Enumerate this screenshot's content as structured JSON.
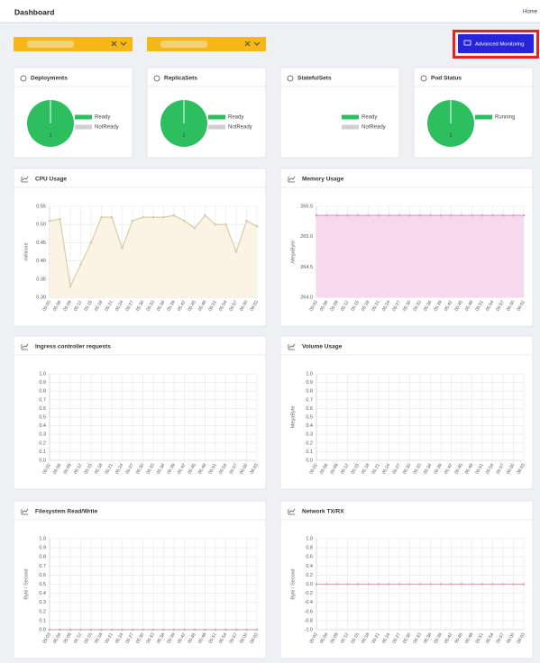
{
  "header": {
    "title": "Dashboard",
    "breadcrumb": "Home"
  },
  "button": "Advanced Monitoring",
  "status_cards": [
    {
      "title": "Deployments",
      "legend": [
        "Ready",
        "NotReady"
      ],
      "colors": [
        "#2dbe60",
        "#cfcfd4"
      ],
      "values": [
        1,
        0
      ]
    },
    {
      "title": "ReplicaSets",
      "legend": [
        "Ready",
        "NotReady"
      ],
      "colors": [
        "#2dbe60",
        "#cfcfd4"
      ],
      "values": [
        1,
        0
      ]
    },
    {
      "title": "StatefulSets",
      "legend": [
        "Ready",
        "NotReady"
      ],
      "colors": [
        "#2dbe60",
        "#cfcfd4"
      ],
      "values": [
        0,
        0
      ]
    },
    {
      "title": "Pod Status",
      "legend": [
        "Running"
      ],
      "colors": [
        "#2dbe60"
      ],
      "values": [
        1
      ]
    }
  ],
  "charts": [
    {
      "type": "area",
      "title": "CPU Usage",
      "ylabel": "millicore",
      "color": "#d9ccab",
      "fill": "#fbf4e4",
      "categories": [
        "05:03",
        "05:06",
        "05:09",
        "05:12",
        "05:15",
        "05:18",
        "05:21",
        "05:24",
        "05:27",
        "05:30",
        "05:33",
        "05:36",
        "05:39",
        "05:42",
        "05:45",
        "05:48",
        "05:51",
        "05:54",
        "05:57",
        "06:00",
        "06:03"
      ],
      "values": [
        0.51,
        0.515,
        0.33,
        0.39,
        0.45,
        0.52,
        0.52,
        0.435,
        0.51,
        0.52,
        0.52,
        0.52,
        0.525,
        0.51,
        0.49,
        0.525,
        0.5,
        0.5,
        0.425,
        0.51,
        0.495
      ],
      "ylim": [
        0.3,
        0.55
      ],
      "yticks": [
        {
          "value": 0.3,
          "label": "0.30"
        },
        0.35,
        {
          "value": 0.4,
          "label": "0.40"
        },
        0.45,
        {
          "value": 0.5,
          "label": "0.50"
        },
        0.55
      ]
    },
    {
      "type": "area",
      "title": "Memory Usage",
      "ylabel": "MegaByte",
      "color": "#dca0cc",
      "fill": "#f7d8ee",
      "categories": [
        "05:02",
        "05:06",
        "05:09",
        "05:12",
        "05:15",
        "05:18",
        "05:21",
        "05:24",
        "05:27",
        "05:30",
        "05:33",
        "05:36",
        "05:39",
        "05:42",
        "05:45",
        "05:48",
        "05:51",
        "05:54",
        "05:57",
        "06:00",
        "06:02"
      ],
      "values": [
        265.35,
        265.35,
        265.35,
        265.35,
        265.35,
        265.35,
        265.35,
        265.35,
        265.35,
        265.35,
        265.35,
        265.35,
        265.35,
        265.35,
        265.35,
        265.35,
        265.35,
        265.35,
        265.35,
        265.35,
        265.35
      ],
      "ylim": [
        264,
        265.5
      ],
      "yticks": [
        {
          "value": 264,
          "label": "264.0"
        },
        264.5,
        {
          "value": 265,
          "label": "265.0"
        },
        265.5
      ]
    },
    {
      "type": "line",
      "title": "Ingress controller requests",
      "categories": [
        "05:02",
        "05:06",
        "05:09",
        "05:12",
        "05:15",
        "05:18",
        "05:21",
        "05:24",
        "05:27",
        "05:30",
        "05:33",
        "05:36",
        "05:39",
        "05:42",
        "05:45",
        "05:48",
        "05:51",
        "05:54",
        "05:57",
        "06:00",
        "06:03"
      ],
      "ylim": [
        0,
        1
      ],
      "yticks": [
        {
          "value": 0,
          "label": "0.0"
        },
        0.1,
        0.2,
        0.3,
        0.4,
        0.5,
        0.6,
        0.7,
        0.8,
        0.9,
        {
          "value": 1,
          "label": "1.0"
        }
      ]
    },
    {
      "type": "line",
      "title": "Volume Usage",
      "ylabel": "MegaByte",
      "categories": [
        "05:02",
        "05:06",
        "05:09",
        "05:12",
        "05:15",
        "05:18",
        "05:21",
        "05:24",
        "05:27",
        "05:30",
        "05:33",
        "05:36",
        "05:39",
        "05:42",
        "05:45",
        "05:48",
        "05:51",
        "05:54",
        "05:57",
        "06:00",
        "06:03"
      ],
      "ylim": [
        0,
        1
      ],
      "yticks": [
        {
          "value": 0,
          "label": "0.0"
        },
        0.1,
        0.2,
        0.3,
        0.4,
        0.5,
        0.6,
        0.7,
        0.8,
        0.9,
        {
          "value": 1,
          "label": "1.0"
        }
      ]
    },
    {
      "type": "line",
      "title": "Filesystem Read/Write",
      "ylabel": "Byte / Second",
      "color": "#d4aab0",
      "categories": [
        "05:03",
        "05:06",
        "05:09",
        "05:12",
        "05:15",
        "05:18",
        "05:21",
        "05:24",
        "05:27",
        "05:30",
        "05:33",
        "05:36",
        "05:39",
        "05:42",
        "05:45",
        "05:48",
        "05:51",
        "05:54",
        "05:57",
        "06:00",
        "06:03"
      ],
      "values": [
        0,
        0,
        0,
        0,
        0,
        0,
        0,
        0,
        0,
        0,
        0,
        0,
        0,
        0,
        0,
        0,
        0,
        0,
        0,
        0,
        0
      ],
      "ylim": [
        0,
        1
      ],
      "yticks": [
        {
          "value": 0,
          "label": "0.0"
        },
        0.1,
        0.2,
        0.3,
        0.4,
        0.5,
        0.6,
        0.7,
        0.8,
        0.9,
        {
          "value": 1,
          "label": "1.0"
        }
      ]
    },
    {
      "type": "line",
      "title": "Network TX/RX",
      "ylabel": "Byte / Second",
      "color": "#d4aab0",
      "categories": [
        "05:02",
        "05:06",
        "05:09",
        "05:12",
        "05:15",
        "05:18",
        "05:21",
        "05:24",
        "05:27",
        "05:30",
        "05:33",
        "05:36",
        "05:39",
        "05:42",
        "05:45",
        "05:48",
        "05:51",
        "05:54",
        "05:57",
        "06:00",
        "06:03"
      ],
      "values": [
        0,
        0,
        0,
        0,
        0,
        0,
        0,
        0,
        0,
        0,
        0,
        0,
        0,
        0,
        0,
        0,
        0,
        0,
        0,
        0,
        0
      ],
      "ylim": [
        -1,
        1
      ],
      "yticks": [
        {
          "value": -1,
          "label": "-1.0"
        },
        -0.8,
        -0.6,
        -0.4,
        -0.2,
        {
          "value": 0,
          "label": "0.0"
        },
        0.2,
        0.4,
        0.6,
        0.8,
        {
          "value": 1,
          "label": "1.0"
        }
      ]
    }
  ]
}
